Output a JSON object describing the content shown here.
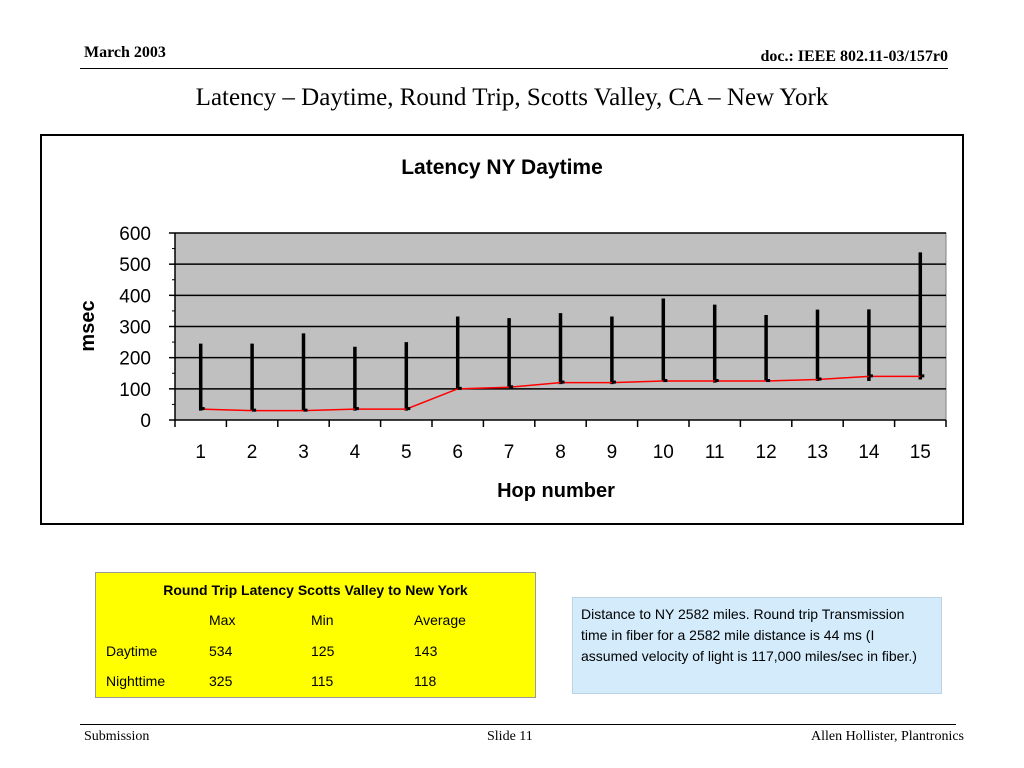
{
  "header": {
    "date": "March 2003",
    "doc_id": "doc.: IEEE 802.11-03/157r0"
  },
  "slide_title": "Latency – Daytime, Round Trip, Scotts Valley, CA – New York",
  "chart_data": {
    "type": "line",
    "title": "Latency NY Daytime",
    "xlabel": "Hop number",
    "ylabel": "msec",
    "categories": [
      "1",
      "2",
      "3",
      "4",
      "5",
      "6",
      "7",
      "8",
      "9",
      "10",
      "11",
      "12",
      "13",
      "14",
      "15"
    ],
    "ylim": [
      0,
      600
    ],
    "yticks": [
      0,
      100,
      200,
      300,
      400,
      500,
      600
    ],
    "yticks_labels": [
      "0",
      "100",
      "200",
      "300",
      "400",
      "500",
      "600"
    ],
    "grid": true,
    "series": [
      {
        "values": [
          35,
          30,
          30,
          35,
          35,
          100,
          105,
          120,
          120,
          125,
          125,
          125,
          130,
          140,
          140
        ]
      }
    ],
    "error_ranges": {
      "min": [
        30,
        30,
        30,
        30,
        30,
        100,
        105,
        115,
        115,
        125,
        120,
        125,
        125,
        125,
        130
      ],
      "max": [
        245,
        245,
        278,
        235,
        250,
        332,
        327,
        343,
        332,
        390,
        370,
        337,
        354,
        355,
        538
      ]
    },
    "colors": {
      "plot_bg": "#c0c0c0",
      "line": "#ff0000",
      "range": "#000000"
    }
  },
  "latency_table": {
    "title": "Round Trip Latency Scotts Valley to New York",
    "headers": [
      "",
      "Max",
      "Min",
      "Average"
    ],
    "rows": [
      [
        "Daytime",
        "534",
        "125",
        "143"
      ],
      [
        "Nighttime",
        "325",
        "115",
        "118"
      ]
    ],
    "background": "#ffff00"
  },
  "note": "Distance to NY 2582 miles. Round trip Transmission time in fiber for a 2582 mile distance is  44 ms (I assumed velocity of light is 117,000 miles/sec in fiber.)",
  "footer": {
    "left": "Submission",
    "center": "Slide 11",
    "right": "Allen Hollister, Plantronics"
  }
}
